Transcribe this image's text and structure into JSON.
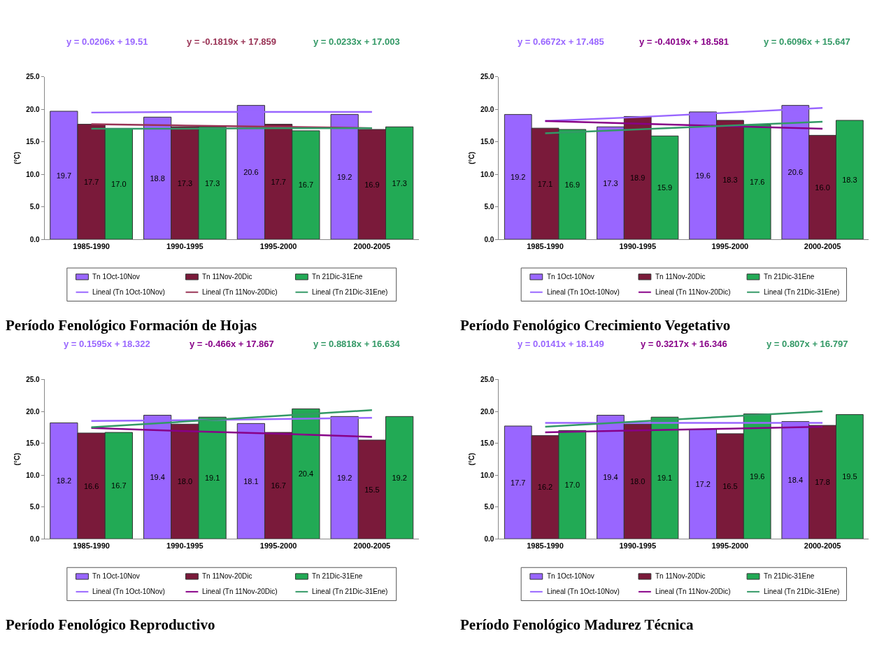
{
  "chart_data": [
    {
      "type": "bar",
      "title": "Período Fenológico Formación de Hojas",
      "ylabel": "(°C)",
      "categories": [
        "1985-1990",
        "1990-1995",
        "1995-2000",
        "2000-2005"
      ],
      "ylim": [
        0,
        25
      ],
      "yticks": [
        {
          "value": 0,
          "label": "0.0"
        },
        {
          "value": 5,
          "label": "5.0"
        },
        {
          "value": 10,
          "label": "10.0"
        },
        {
          "value": 15,
          "label": "15.0"
        },
        {
          "value": 20,
          "label": "20.0"
        },
        {
          "value": 25,
          "label": "25.0"
        }
      ],
      "legend": "bottom",
      "annotations": [
        "y = 0.0206x + 19.51",
        "y = -0.1819x + 17.859",
        "y = 0.0233x + 17.003"
      ],
      "series": [
        {
          "name": "Tn 1Oct-10Nov",
          "color": "#9966ff",
          "values": [
            19.7,
            18.8,
            20.6,
            19.2
          ],
          "value_labels": [
            "19.7",
            "18.8",
            "20.6",
            "19.2"
          ]
        },
        {
          "name": "Tn 11Nov-20Dic",
          "color": "#7a1a3a",
          "values": [
            17.7,
            17.3,
            17.7,
            16.9
          ],
          "value_labels": [
            "17.7",
            "17.3",
            "17.7",
            "16.9"
          ]
        },
        {
          "name": "Tn 21Dic-31Ene",
          "color": "#22aa55",
          "values": [
            17.0,
            17.3,
            16.7,
            17.3
          ],
          "value_labels": [
            "17.0",
            "17.3",
            "16.7",
            "17.3"
          ]
        },
        {
          "name": "Lineal (Tn 1Oct-10Nov)",
          "type": "line",
          "color": "#9966ff",
          "values": [
            19.5,
            19.6,
            19.6,
            19.6
          ]
        },
        {
          "name": "Lineal (Tn 11Nov-20Dic)",
          "type": "line",
          "color": "#993355",
          "values": [
            17.7,
            17.5,
            17.3,
            17.1
          ]
        },
        {
          "name": "Lineal (Tn 21Dic-31Ene)",
          "type": "line",
          "color": "#339966",
          "values": [
            17.0,
            17.0,
            17.1,
            17.1
          ]
        }
      ]
    },
    {
      "type": "bar",
      "title": "Período Fenológico Crecimiento Vegetativo",
      "ylabel": "(°C)",
      "categories": [
        "1985-1990",
        "1990-1995",
        "1995-2000",
        "2000-2005"
      ],
      "ylim": [
        0,
        25
      ],
      "yticks": [
        {
          "value": 0,
          "label": "0.0"
        },
        {
          "value": 5,
          "label": "5.0"
        },
        {
          "value": 10,
          "label": "10.0"
        },
        {
          "value": 15,
          "label": "15.0"
        },
        {
          "value": 20,
          "label": "20.0"
        },
        {
          "value": 25,
          "label": "25.0"
        }
      ],
      "legend": "bottom",
      "annotations": [
        "y = 0.6672x + 17.485",
        "y = -0.4019x + 18.581",
        "y = 0.6096x + 15.647"
      ],
      "series": [
        {
          "name": "Tn 1Oct-10Nov",
          "color": "#9966ff",
          "values": [
            19.2,
            17.3,
            19.6,
            20.6
          ],
          "value_labels": [
            "19.2",
            "17.3",
            "19.6",
            "20.6"
          ]
        },
        {
          "name": "Tn 11Nov-20Dic",
          "color": "#7a1a3a",
          "values": [
            17.1,
            18.9,
            18.3,
            16.0
          ],
          "value_labels": [
            "17.1",
            "18.9",
            "18.3",
            "16.0"
          ]
        },
        {
          "name": "Tn 21Dic-31Ene",
          "color": "#22aa55",
          "values": [
            16.9,
            15.9,
            17.6,
            18.3
          ],
          "value_labels": [
            "16.9",
            "15.9",
            "17.6",
            "18.3"
          ]
        },
        {
          "name": "Lineal (Tn 1Oct-10Nov)",
          "type": "line",
          "color": "#9966ff",
          "values": [
            18.2,
            18.8,
            19.5,
            20.2
          ]
        },
        {
          "name": "Lineal (Tn 11Nov-20Dic)",
          "type": "line",
          "color": "#880088",
          "values": [
            18.2,
            17.8,
            17.4,
            17.0
          ]
        },
        {
          "name": "Lineal (Tn 21Dic-31Ene)",
          "type": "line",
          "color": "#339966",
          "values": [
            16.3,
            16.9,
            17.5,
            18.1
          ]
        }
      ]
    },
    {
      "type": "bar",
      "title": "Período Fenológico Reproductivo",
      "ylabel": "(°C)",
      "categories": [
        "1985-1990",
        "1990-1995",
        "1995-2000",
        "2000-2005"
      ],
      "ylim": [
        0,
        25
      ],
      "yticks": [
        {
          "value": 0,
          "label": "0.0"
        },
        {
          "value": 5,
          "label": "5.0"
        },
        {
          "value": 10,
          "label": "10.0"
        },
        {
          "value": 15,
          "label": "15.0"
        },
        {
          "value": 20,
          "label": "20.0"
        },
        {
          "value": 25,
          "label": "25.0"
        }
      ],
      "legend": "bottom",
      "annotations": [
        "y = 0.1595x + 18.322",
        "y = -0.466x + 17.867",
        "y = 0.8818x + 16.634"
      ],
      "series": [
        {
          "name": "Tn 1Oct-10Nov",
          "color": "#9966ff",
          "values": [
            18.2,
            19.4,
            18.1,
            19.2
          ],
          "value_labels": [
            "18.2",
            "19.4",
            "18.1",
            "19.2"
          ]
        },
        {
          "name": "Tn 11Nov-20Dic",
          "color": "#7a1a3a",
          "values": [
            16.6,
            18.0,
            16.7,
            15.5
          ],
          "value_labels": [
            "16.6",
            "18.0",
            "16.7",
            "15.5"
          ]
        },
        {
          "name": "Tn 21Dic-31Ene",
          "color": "#22aa55",
          "values": [
            16.7,
            19.1,
            20.4,
            19.2
          ],
          "value_labels": [
            "16.7",
            "19.1",
            "20.4",
            "19.2"
          ]
        },
        {
          "name": "Lineal (Tn 1Oct-10Nov)",
          "type": "line",
          "color": "#9966ff",
          "values": [
            18.5,
            18.6,
            18.8,
            19.0
          ]
        },
        {
          "name": "Lineal (Tn 11Nov-20Dic)",
          "type": "line",
          "color": "#880088",
          "values": [
            17.4,
            16.9,
            16.5,
            16.0
          ]
        },
        {
          "name": "Lineal (Tn 21Dic-31Ene)",
          "type": "line",
          "color": "#339966",
          "values": [
            17.5,
            18.4,
            19.3,
            20.2
          ]
        }
      ]
    },
    {
      "type": "bar",
      "title": "Período Fenológico Madurez Técnica",
      "ylabel": "(°C)",
      "categories": [
        "1985-1990",
        "1990-1995",
        "1995-2000",
        "2000-2005"
      ],
      "ylim": [
        0,
        25
      ],
      "yticks": [
        {
          "value": 0,
          "label": "0.0"
        },
        {
          "value": 5,
          "label": "5.0"
        },
        {
          "value": 10,
          "label": "10.0"
        },
        {
          "value": 15,
          "label": "15.0"
        },
        {
          "value": 20,
          "label": "20.0"
        },
        {
          "value": 25,
          "label": "25.0"
        }
      ],
      "legend": "bottom",
      "annotations": [
        "y = 0.0141x + 18.149",
        "y = 0.3217x + 16.346",
        "y = 0.807x + 16.797"
      ],
      "series": [
        {
          "name": "Tn 1Oct-10Nov",
          "color": "#9966ff",
          "values": [
            17.7,
            19.4,
            17.2,
            18.4
          ],
          "value_labels": [
            "17.7",
            "19.4",
            "17.2",
            "18.4"
          ]
        },
        {
          "name": "Tn 11Nov-20Dic",
          "color": "#7a1a3a",
          "values": [
            16.2,
            18.0,
            16.5,
            17.8
          ],
          "value_labels": [
            "16.2",
            "18.0",
            "16.5",
            "17.8"
          ]
        },
        {
          "name": "Tn 21Dic-31Ene",
          "color": "#22aa55",
          "values": [
            17.0,
            19.1,
            19.6,
            19.5
          ],
          "value_labels": [
            "17.0",
            "19.1",
            "19.6",
            "19.5"
          ]
        },
        {
          "name": "Lineal (Tn 1Oct-10Nov)",
          "type": "line",
          "color": "#9966ff",
          "values": [
            18.2,
            18.2,
            18.2,
            18.2
          ]
        },
        {
          "name": "Lineal (Tn 11Nov-20Dic)",
          "type": "line",
          "color": "#880088",
          "values": [
            16.7,
            17.0,
            17.3,
            17.6
          ]
        },
        {
          "name": "Lineal (Tn 21Dic-31Ene)",
          "type": "line",
          "color": "#339966",
          "values": [
            17.6,
            18.4,
            19.2,
            20.0
          ]
        }
      ]
    }
  ]
}
